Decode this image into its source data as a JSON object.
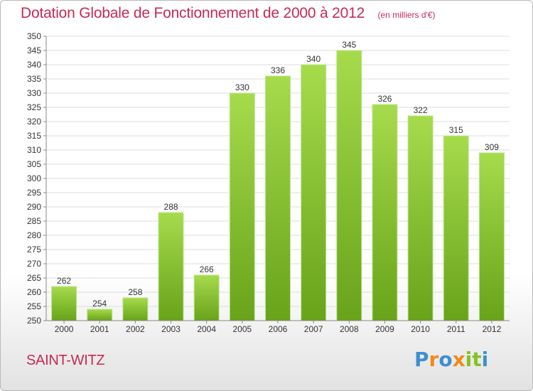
{
  "header": {
    "title": "Dotation Globale de Fonctionnement de 2000 à 2012",
    "subtitle": "(en milliers d'€)"
  },
  "footer": {
    "place_name": "SAINT-WITZ",
    "brand": "Proxiti"
  },
  "colors": {
    "title": "#c72a56",
    "bar_top": "#a6db4c",
    "bar_bottom": "#68a31a",
    "brand_letters": [
      "#3e8fd0",
      "#f08a1c",
      "#3e8fd0",
      "#f08a1c",
      "#84c225",
      "#84c225",
      "#3e8fd0"
    ]
  },
  "chart_data": {
    "type": "bar",
    "title": "Dotation Globale de Fonctionnement de 2000 à 2012",
    "subtitle": "(en milliers d'€)",
    "categories": [
      "2000",
      "2001",
      "2002",
      "2003",
      "2004",
      "2005",
      "2006",
      "2007",
      "2008",
      "2009",
      "2010",
      "2011",
      "2012"
    ],
    "values": [
      262,
      254,
      258,
      288,
      266,
      330,
      336,
      340,
      345,
      326,
      322,
      315,
      309
    ],
    "data_labels": [
      "262",
      "254",
      "258",
      "288",
      "266",
      "330",
      "336",
      "340",
      "345",
      "326",
      "322",
      "315",
      "309"
    ],
    "ylim": [
      250,
      350
    ],
    "ytick_step": 5,
    "yticks": [
      "250",
      "255",
      "260",
      "265",
      "270",
      "275",
      "280",
      "285",
      "290",
      "295",
      "300",
      "305",
      "310",
      "315",
      "320",
      "325",
      "330",
      "335",
      "340",
      "345",
      "350"
    ],
    "grid": true,
    "legend": "none",
    "xlabel": "",
    "ylabel": ""
  }
}
